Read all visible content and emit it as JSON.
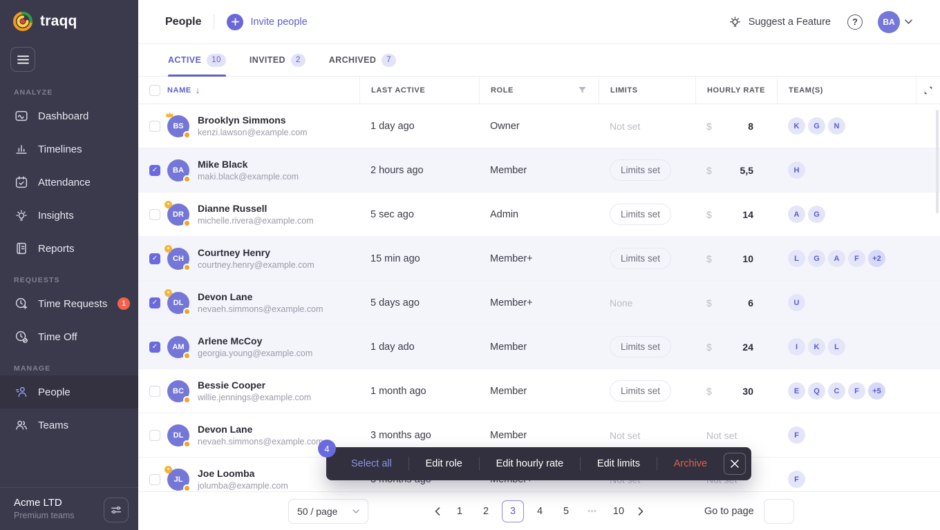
{
  "colors": {
    "accent": "#5d5fce",
    "accent_fill": "#6a68d9",
    "sidebar_bg": "#3b3a4d",
    "danger": "#e2604e",
    "status_dot": "#f0a32f",
    "chip_bg": "#e4e5f8",
    "selected_row_bg": "#f4f5fb"
  },
  "sidebar": {
    "logo": "traqq",
    "sections": [
      {
        "label": "ANALYZE",
        "items": [
          {
            "label": "Dashboard",
            "icon": "dashboard-icon"
          },
          {
            "label": "Timelines",
            "icon": "timelines-icon"
          },
          {
            "label": "Attendance",
            "icon": "attendance-icon"
          },
          {
            "label": "Insights",
            "icon": "insights-icon"
          },
          {
            "label": "Reports",
            "icon": "reports-icon"
          }
        ]
      },
      {
        "label": "REQUESTS",
        "items": [
          {
            "label": "Time Requests",
            "icon": "time-requests-icon",
            "badge": "1"
          },
          {
            "label": "Time Off",
            "icon": "time-off-icon"
          }
        ]
      },
      {
        "label": "MANAGE",
        "items": [
          {
            "label": "People",
            "icon": "people-icon",
            "active": true
          },
          {
            "label": "Teams",
            "icon": "teams-icon"
          }
        ]
      }
    ],
    "workspace": {
      "name": "Acme LTD",
      "plan": "Premium teams"
    }
  },
  "header": {
    "title": "People",
    "invite": "Invite people",
    "suggest": "Suggest a Feature",
    "help": "?",
    "avatar": "BA"
  },
  "tabs": [
    {
      "label": "ACTIVE",
      "count": "10",
      "active": true
    },
    {
      "label": "INVITED",
      "count": "2",
      "active": false
    },
    {
      "label": "ARCHIVED",
      "count": "7",
      "active": false
    }
  ],
  "table": {
    "columns": {
      "name": "NAME",
      "last_active": "LAST ACTIVE",
      "role": "ROLE",
      "limits": "LIMITS",
      "hourly_rate": "HOURLY RATE",
      "teams": "TEAM(S)"
    },
    "rows": [
      {
        "initials": "BS",
        "crown": true,
        "star": false,
        "checked": false,
        "name": "Brooklyn Simmons",
        "email": "kenzi.lawson@example.com",
        "last_active": "1 day ago",
        "role": "Owner",
        "limits": "Not set",
        "limits_set": false,
        "currency": "$",
        "rate": "8",
        "rate_set": true,
        "teams": [
          "K",
          "G",
          "N"
        ]
      },
      {
        "initials": "BA",
        "crown": false,
        "star": false,
        "checked": true,
        "name": "Mike Black",
        "email": "maki.black@example.com",
        "last_active": "2 hours ago",
        "role": "Member",
        "limits": "Limits set",
        "limits_set": true,
        "currency": "$",
        "rate": "5,5",
        "rate_set": true,
        "teams": [
          "H"
        ]
      },
      {
        "initials": "DR",
        "crown": false,
        "star": true,
        "checked": false,
        "name": "Dianne Russell",
        "email": "michelle.rivera@example.com",
        "last_active": "5 sec ago",
        "role": "Admin",
        "limits": "Limits set",
        "limits_set": true,
        "currency": "$",
        "rate": "14",
        "rate_set": true,
        "teams": [
          "A",
          "G"
        ]
      },
      {
        "initials": "CH",
        "crown": false,
        "star": true,
        "checked": true,
        "name": "Courtney Henry",
        "email": "courtney.henry@example.com",
        "last_active": "15 min ago",
        "role": "Member+",
        "limits": "Limits set",
        "limits_set": true,
        "currency": "$",
        "rate": "10",
        "rate_set": true,
        "teams": [
          "L",
          "G",
          "A",
          "F",
          "+2"
        ]
      },
      {
        "initials": "DL",
        "crown": false,
        "star": true,
        "checked": true,
        "name": "Devon Lane",
        "email": "nevaeh.simmons@example.com",
        "last_active": "5 days ago",
        "role": "Member+",
        "limits": "None",
        "limits_set": false,
        "currency": "$",
        "rate": "6",
        "rate_set": true,
        "teams": [
          "U"
        ]
      },
      {
        "initials": "AM",
        "crown": false,
        "star": false,
        "checked": true,
        "name": "Arlene McCoy",
        "email": "georgia.young@example.com",
        "last_active": "1 day ado",
        "role": "Member",
        "limits": "Limits set",
        "limits_set": true,
        "currency": "$",
        "rate": "24",
        "rate_set": true,
        "teams": [
          "I",
          "K",
          "L"
        ]
      },
      {
        "initials": "BC",
        "crown": false,
        "star": false,
        "checked": false,
        "name": "Bessie Cooper",
        "email": "willie.jennings@example.com",
        "last_active": "1 month ago",
        "role": "Member",
        "limits": "Limits set",
        "limits_set": true,
        "currency": "$",
        "rate": "30",
        "rate_set": true,
        "teams": [
          "E",
          "Q",
          "C",
          "F",
          "+5"
        ]
      },
      {
        "initials": "DL",
        "crown": false,
        "star": false,
        "checked": false,
        "name": "Devon Lane",
        "email": "nevaeh.simmons@example.com",
        "last_active": "3 months ago",
        "role": "Member",
        "limits": "Not set",
        "limits_set": false,
        "currency": "",
        "rate": "Not set",
        "rate_set": false,
        "teams": [
          "F"
        ]
      },
      {
        "initials": "JL",
        "crown": false,
        "star": true,
        "checked": false,
        "name": "Joe Loomba",
        "email": "jolumba@example.com",
        "last_active": "3 months ago",
        "role": "Member+",
        "limits": "Not set",
        "limits_set": false,
        "currency": "",
        "rate": "Not set",
        "rate_set": false,
        "teams": [
          "F"
        ]
      }
    ]
  },
  "action_bar": {
    "count": "4",
    "items": [
      {
        "label": "Select all",
        "style": "accent"
      },
      {
        "label": "Edit role",
        "style": "default"
      },
      {
        "label": "Edit hourly rate",
        "style": "default"
      },
      {
        "label": "Edit limits",
        "style": "default"
      },
      {
        "label": "Archive",
        "style": "danger"
      }
    ]
  },
  "pagination": {
    "page_size": "50 / page",
    "pages": [
      "1",
      "2",
      "3",
      "4",
      "5",
      "•••",
      "10"
    ],
    "active": "3",
    "goto": "Go to page"
  }
}
